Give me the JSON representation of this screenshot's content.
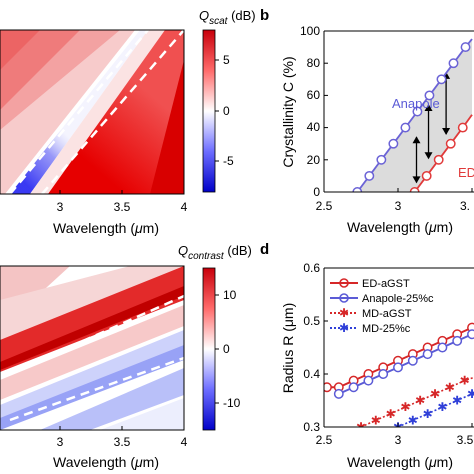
{
  "panels": {
    "a": {
      "colorbar_title": "Q",
      "colorbar_sub": "scat",
      "colorbar_unit": " (dB)",
      "colorbar_ticks": [
        "5",
        "0",
        "-5"
      ],
      "colorbar_range": [
        -8,
        8
      ],
      "x_ticks": [
        "3",
        "3.5",
        "4"
      ],
      "xlabel_pre": "Wavelength (",
      "xlabel_mu": "μ",
      "xlabel_post": "m)"
    },
    "b": {
      "letter": "b",
      "x_ticks": [
        "2.5",
        "3",
        "3."
      ],
      "y_ticks": [
        "100",
        "80",
        "60",
        "40",
        "20",
        "0"
      ],
      "ylabel": "Crystallinity C (%)",
      "xlabel_pre": "Wavelength (",
      "xlabel_mu": "μ",
      "xlabel_post": "m)",
      "label_anapole": "Anapole",
      "label_ed": "ED"
    },
    "c": {
      "colorbar_title": "Q",
      "colorbar_sub": "contrast",
      "colorbar_unit": " (dB)",
      "colorbar_ticks": [
        "10",
        "0",
        "-10"
      ],
      "colorbar_range": [
        -15,
        15
      ],
      "x_ticks": [
        "3",
        "3.5",
        "4"
      ],
      "xlabel_pre": "Wavelength (",
      "xlabel_mu": "μ",
      "xlabel_post": "m)"
    },
    "d": {
      "letter": "d",
      "x_ticks": [
        "2.5",
        "3",
        "3.5"
      ],
      "y_ticks": [
        "0.6",
        "0.5",
        "0.4",
        "0.3"
      ],
      "ylabel": "Radius R (μm)",
      "xlabel_pre": "Wavelength (",
      "xlabel_mu": "μ",
      "xlabel_post": "m)",
      "legend": [
        "ED-aGST",
        "Anapole-25%c",
        "MD-aGST",
        "MD-25%c"
      ]
    }
  },
  "colors": {
    "red": "#d62728",
    "blue": "#5b5bd6",
    "red_dark": "#e8242a",
    "blue_dark": "#2f3fd8"
  },
  "chart_data": [
    {
      "panel": "b",
      "type": "line",
      "xlim": [
        2.5,
        3.3
      ],
      "ylim": [
        0,
        100
      ],
      "series": [
        {
          "name": "Anapole",
          "color": "#6b63d6",
          "x": [
            2.68,
            2.745,
            2.81,
            2.875,
            2.94,
            3.005,
            3.07,
            3.135,
            3.2,
            3.265,
            3.3
          ],
          "y": [
            0,
            10,
            20,
            30,
            40,
            50,
            60,
            70,
            80,
            90,
            95
          ]
        },
        {
          "name": "ED",
          "color": "#e03a3a",
          "x": [
            2.99,
            3.055,
            3.12,
            3.185,
            3.25,
            3.3
          ],
          "y": [
            0,
            10,
            20,
            30,
            40,
            48
          ]
        }
      ]
    },
    {
      "panel": "d",
      "type": "line",
      "xlim": [
        2.5,
        3.62
      ],
      "ylim": [
        0.3,
        0.6
      ],
      "series": [
        {
          "name": "ED-aGST",
          "color": "#d62728",
          "style": "solid",
          "marker": "circle",
          "x": [
            2.52,
            2.6,
            2.7,
            2.8,
            2.9,
            3.0,
            3.1,
            3.2,
            3.3,
            3.4,
            3.5,
            3.58
          ],
          "y": [
            0.375,
            0.375,
            0.3875,
            0.4,
            0.4125,
            0.425,
            0.4375,
            0.45,
            0.4625,
            0.475,
            0.4875,
            0.5
          ]
        },
        {
          "name": "Anapole-25%c",
          "color": "#5b5bd6",
          "style": "solid",
          "marker": "circle",
          "x": [
            2.6,
            2.7,
            2.8,
            2.9,
            3.0,
            3.1,
            3.2,
            3.3,
            3.4,
            3.5,
            3.58
          ],
          "y": [
            0.3625,
            0.375,
            0.3875,
            0.4,
            0.4125,
            0.425,
            0.4375,
            0.45,
            0.4625,
            0.475,
            0.4875
          ]
        },
        {
          "name": "MD-aGST",
          "color": "#d62728",
          "style": "dotted",
          "marker": "star",
          "x": [
            2.75,
            2.85,
            2.95,
            3.05,
            3.15,
            3.25,
            3.35,
            3.45,
            3.58
          ],
          "y": [
            0.3,
            0.3125,
            0.325,
            0.3375,
            0.35,
            0.3625,
            0.375,
            0.3875,
            0.4
          ]
        },
        {
          "name": "MD-25%c",
          "color": "#2f3fd8",
          "style": "dotted",
          "marker": "star",
          "x": [
            3.0,
            3.1,
            3.2,
            3.3,
            3.4,
            3.5,
            3.58
          ],
          "y": [
            0.3,
            0.3125,
            0.325,
            0.3375,
            0.35,
            0.3625,
            0.375
          ]
        }
      ]
    },
    {
      "panel": "a",
      "type": "heatmap",
      "xlim": [
        2.62,
        4.0
      ],
      "zlim": [
        -8,
        8
      ]
    },
    {
      "panel": "c",
      "type": "heatmap",
      "xlim": [
        2.62,
        4.0
      ],
      "zlim": [
        -15,
        15
      ]
    }
  ]
}
